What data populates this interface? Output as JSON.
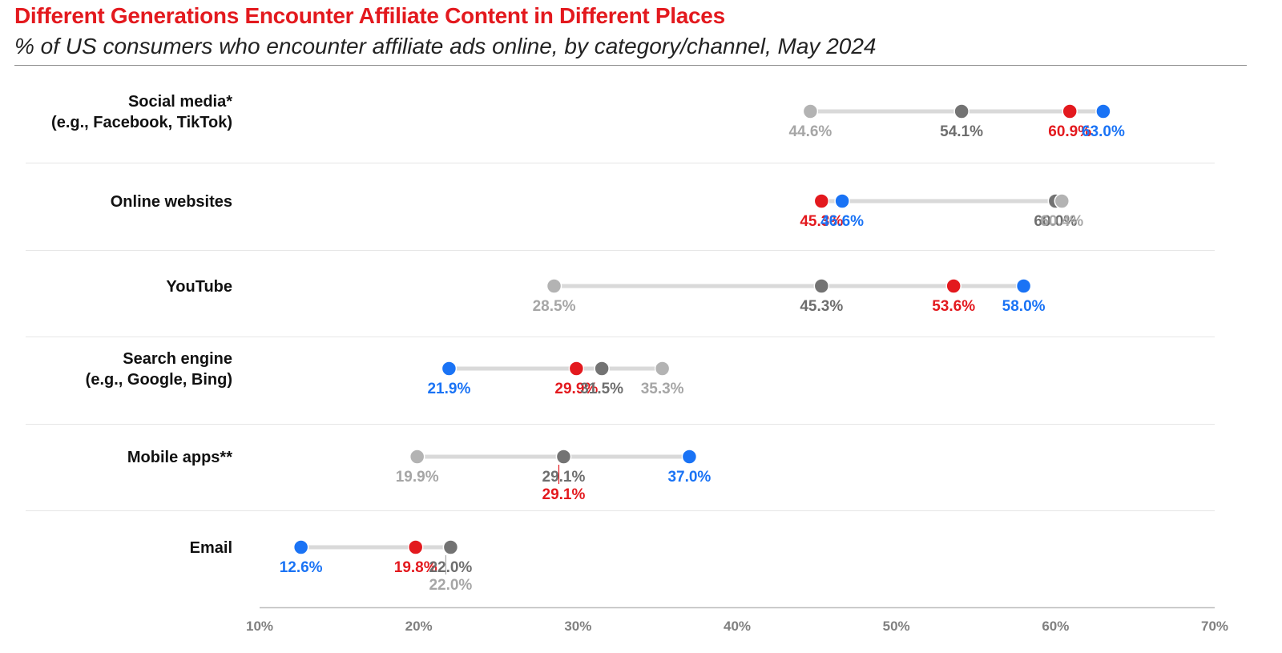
{
  "header": {
    "title": "Different Generations Encounter Affiliate Content in Different Places",
    "subtitle": "% of US consumers who encounter affiliate ads online, by category/channel, May 2024"
  },
  "chart_data": {
    "type": "dot-range",
    "title": "Different Generations Encounter Affiliate Content in Different Places",
    "subtitle": "% of US consumers who encounter affiliate ads online, by category/channel, May 2024",
    "xlim": [
      10,
      70
    ],
    "ticks": [
      "10%",
      "20%",
      "30%",
      "40%",
      "50%",
      "60%",
      "70%"
    ],
    "tick_values": [
      10,
      20,
      30,
      40,
      50,
      60,
      70
    ],
    "series": [
      {
        "key": "lightgray",
        "color": "#b3b3b3",
        "label_color": "#a6a6a6"
      },
      {
        "key": "darkgray",
        "color": "#737373",
        "label_color": "#6e6e6e"
      },
      {
        "key": "red",
        "color": "#e3191e",
        "label_color": "#e3191e"
      },
      {
        "key": "blue",
        "color": "#1a73f5",
        "label_color": "#1a73f5"
      }
    ],
    "categories": [
      {
        "lines": [
          "Social media*",
          "(e.g., Facebook, TikTok)"
        ],
        "points": [
          {
            "series": "lightgray",
            "value": 44.6,
            "label": "44.6%"
          },
          {
            "series": "darkgray",
            "value": 54.1,
            "label": "54.1%"
          },
          {
            "series": "red",
            "value": 60.9,
            "label": "60.9%"
          },
          {
            "series": "blue",
            "value": 63.0,
            "label": "63.0%"
          }
        ]
      },
      {
        "lines": [
          "Online websites"
        ],
        "points": [
          {
            "series": "red",
            "value": 45.3,
            "label": "45.3%"
          },
          {
            "series": "blue",
            "value": 46.6,
            "label": "46.6%"
          },
          {
            "series": "darkgray",
            "value": 60.0,
            "label": "60.0%"
          },
          {
            "series": "lightgray",
            "value": 60.4,
            "label": "60.4%"
          }
        ]
      },
      {
        "lines": [
          "YouTube"
        ],
        "points": [
          {
            "series": "lightgray",
            "value": 28.5,
            "label": "28.5%"
          },
          {
            "series": "darkgray",
            "value": 45.3,
            "label": "45.3%"
          },
          {
            "series": "red",
            "value": 53.6,
            "label": "53.6%"
          },
          {
            "series": "blue",
            "value": 58.0,
            "label": "58.0%"
          }
        ]
      },
      {
        "lines": [
          "Search engine",
          "(e.g., Google, Bing)"
        ],
        "points": [
          {
            "series": "blue",
            "value": 21.9,
            "label": "21.9%"
          },
          {
            "series": "red",
            "value": 29.9,
            "label": "29.9%"
          },
          {
            "series": "darkgray",
            "value": 31.5,
            "label": "31.5%"
          },
          {
            "series": "lightgray",
            "value": 35.3,
            "label": "35.3%"
          }
        ]
      },
      {
        "lines": [
          "Mobile apps**"
        ],
        "points": [
          {
            "series": "lightgray",
            "value": 19.9,
            "label": "19.9%"
          },
          {
            "series": "red",
            "value": 29.1,
            "label": "29.1%",
            "label_below": true
          },
          {
            "series": "darkgray",
            "value": 29.1,
            "label": "29.1%"
          },
          {
            "series": "blue",
            "value": 37.0,
            "label": "37.0%"
          }
        ]
      },
      {
        "lines": [
          "Email"
        ],
        "points": [
          {
            "series": "blue",
            "value": 12.6,
            "label": "12.6%"
          },
          {
            "series": "red",
            "value": 19.8,
            "label": "19.8%"
          },
          {
            "series": "lightgray",
            "value": 22.0,
            "label": "22.0%",
            "label_below": true
          },
          {
            "series": "darkgray",
            "value": 22.0,
            "label": "22.0%"
          }
        ]
      }
    ]
  }
}
